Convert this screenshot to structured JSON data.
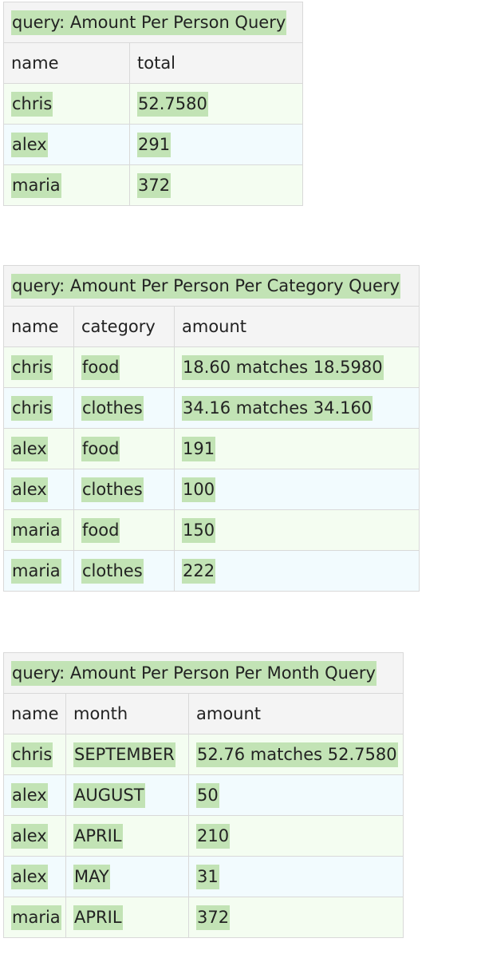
{
  "tables": [
    {
      "title": "query: Amount Per Person Query",
      "headers": [
        "name",
        "total"
      ],
      "rows": [
        [
          "chris",
          "52.7580"
        ],
        [
          "alex",
          "291"
        ],
        [
          "maria",
          "372"
        ]
      ]
    },
    {
      "title": "query: Amount Per Person Per Category Query",
      "headers": [
        "name",
        "category",
        "amount"
      ],
      "rows": [
        [
          "chris",
          "food",
          "18.60 matches 18.5980"
        ],
        [
          "chris",
          "clothes",
          "34.16 matches 34.160"
        ],
        [
          "alex",
          "food",
          "191"
        ],
        [
          "alex",
          "clothes",
          "100"
        ],
        [
          "maria",
          "food",
          "150"
        ],
        [
          "maria",
          "clothes",
          "222"
        ]
      ]
    },
    {
      "title": "query: Amount Per Person Per Month Query",
      "headers": [
        "name",
        "month",
        "amount"
      ],
      "rows": [
        [
          "chris",
          "SEPTEMBER",
          "52.76 matches 52.7580"
        ],
        [
          "alex",
          "AUGUST",
          "50"
        ],
        [
          "alex",
          "APRIL",
          "210"
        ],
        [
          "alex",
          "MAY",
          "31"
        ],
        [
          "maria",
          "APRIL",
          "372"
        ]
      ]
    }
  ],
  "colors": {
    "pass_highlight": "#c2e3b5",
    "title_background": "#f4f4f4",
    "row_green": "#f4fdf1",
    "row_blue": "#f2fbfe",
    "border": "#d9d9d9"
  }
}
